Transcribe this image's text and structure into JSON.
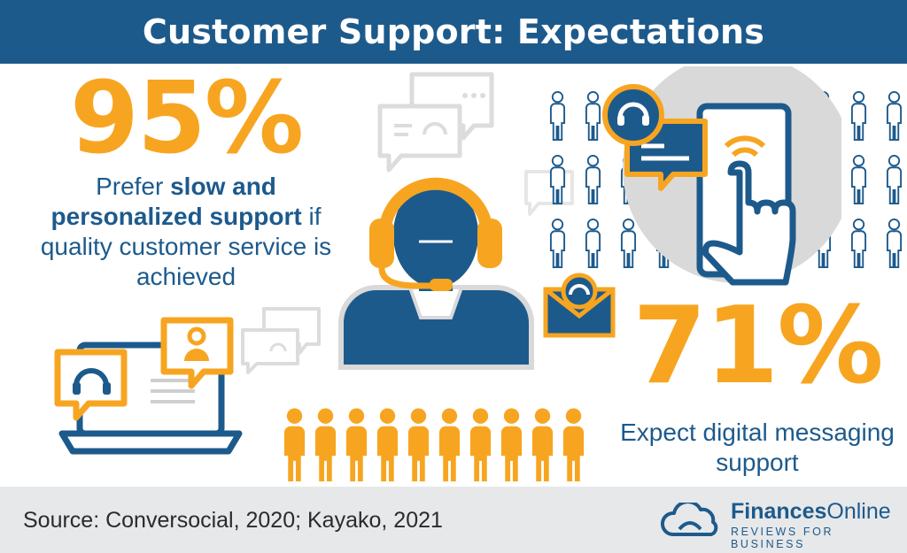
{
  "header": {
    "title": "Customer Support: Expectations"
  },
  "stat_left": {
    "value": "95%",
    "desc_part1": "Prefer ",
    "desc_bold": "slow and personalized support",
    "desc_part2": " if quality customer service is achieved"
  },
  "stat_right": {
    "value": "71%",
    "desc": "Expect digital messaging support"
  },
  "people_row": {
    "count": 10,
    "highlighted_fraction": 0.95
  },
  "footer": {
    "source": "Source: Conversocial, 2020; Kayako, 2021",
    "brand_name_bold": "Finances",
    "brand_name_regular": "Online",
    "brand_tagline": "REVIEWS FOR BUSINESS"
  },
  "colors": {
    "navy": "#1d5a8c",
    "orange": "#f7a520",
    "gray": "#d9d9d9"
  }
}
